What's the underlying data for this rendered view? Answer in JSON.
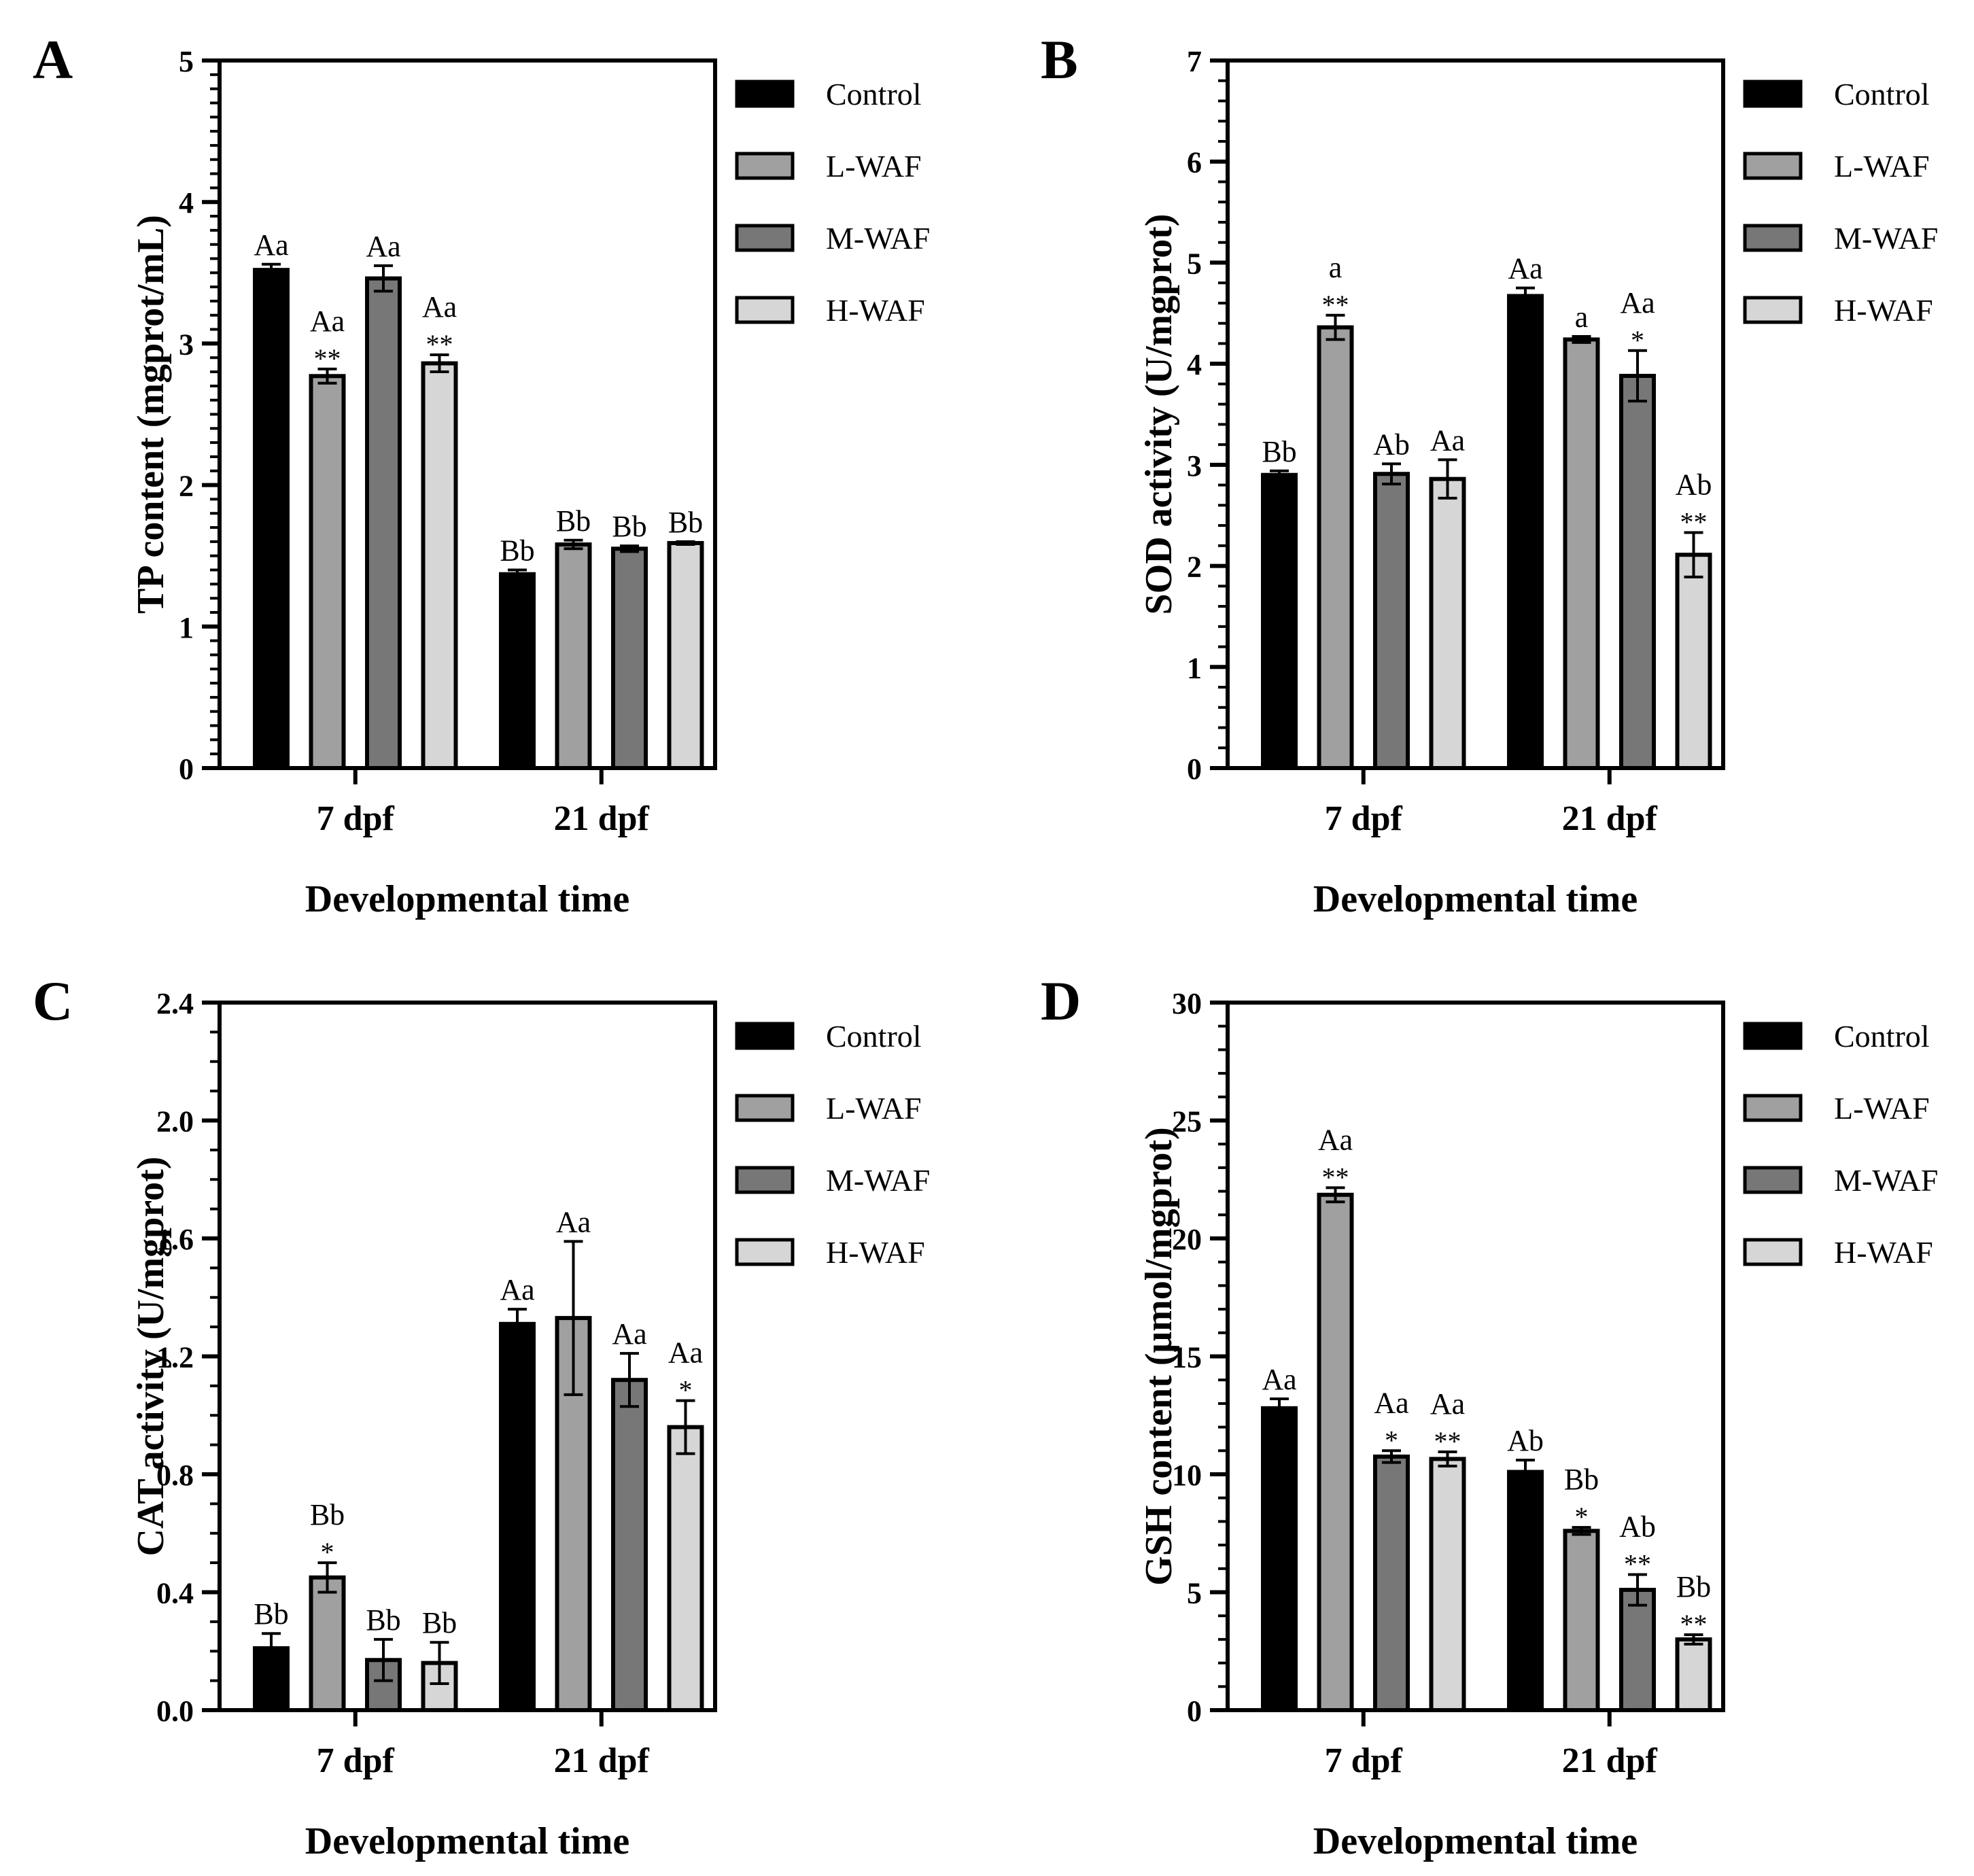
{
  "figure": {
    "series_names": [
      "Control",
      "L-WAF",
      "M-WAF",
      "H-WAF"
    ],
    "series_colors": [
      "#000000",
      "#a0a0a0",
      "#777777",
      "#d6d6d6"
    ]
  },
  "chart_data": [
    {
      "panel": "A",
      "type": "bar",
      "categories": [
        "7 dpf",
        "21 dpf"
      ],
      "xlabel": "Developmental time",
      "ylabel": "TP content (mgprot/mL)",
      "ylim": [
        0,
        5
      ],
      "yticks": [
        0,
        1,
        2,
        3,
        4,
        5
      ],
      "ytick_labels": [
        "0",
        "1",
        "2",
        "3",
        "4",
        "5"
      ],
      "minor_per_major": 10,
      "legend": "top-right",
      "series": [
        {
          "name": "Control",
          "values": [
            3.52,
            1.37
          ],
          "errors": [
            0.04,
            0.03
          ],
          "letters": [
            "Aa",
            "Bb"
          ],
          "stars": [
            "",
            ""
          ]
        },
        {
          "name": "L-WAF",
          "values": [
            2.77,
            1.58
          ],
          "errors": [
            0.05,
            0.03
          ],
          "letters": [
            "Aa",
            "Bb"
          ],
          "stars": [
            "**",
            ""
          ]
        },
        {
          "name": "M-WAF",
          "values": [
            3.46,
            1.55
          ],
          "errors": [
            0.09,
            0.02
          ],
          "letters": [
            "Aa",
            "Bb"
          ],
          "stars": [
            "",
            ""
          ]
        },
        {
          "name": "H-WAF",
          "values": [
            2.86,
            1.59
          ],
          "errors": [
            0.06,
            0.01
          ],
          "letters": [
            "Aa",
            "Bb"
          ],
          "stars": [
            "**",
            ""
          ]
        }
      ]
    },
    {
      "panel": "B",
      "type": "bar",
      "categories": [
        "7 dpf",
        "21 dpf"
      ],
      "xlabel": "Developmental time",
      "ylabel": "SOD activity (U/mgprot)",
      "ylim": [
        0,
        7
      ],
      "yticks": [
        0,
        1,
        2,
        3,
        4,
        5,
        6,
        7
      ],
      "ytick_labels": [
        "0",
        "1",
        "2",
        "3",
        "4",
        "5",
        "6",
        "7"
      ],
      "minor_per_major": 5,
      "legend": "top-right",
      "series": [
        {
          "name": "Control",
          "values": [
            2.9,
            4.67
          ],
          "errors": [
            0.04,
            0.08
          ],
          "letters": [
            "Bb",
            "Aa"
          ],
          "stars": [
            "",
            ""
          ]
        },
        {
          "name": "L-WAF",
          "values": [
            4.36,
            4.24
          ],
          "errors": [
            0.12,
            0.03
          ],
          "letters": [
            "a",
            "a"
          ],
          "stars": [
            "**",
            ""
          ]
        },
        {
          "name": "M-WAF",
          "values": [
            2.91,
            3.88
          ],
          "errors": [
            0.1,
            0.25
          ],
          "letters": [
            "Ab",
            "Aa"
          ],
          "stars": [
            "",
            "*"
          ]
        },
        {
          "name": "H-WAF",
          "values": [
            2.86,
            2.11
          ],
          "errors": [
            0.19,
            0.22
          ],
          "letters": [
            "Aa",
            "Ab"
          ],
          "stars": [
            "",
            "**"
          ]
        }
      ]
    },
    {
      "panel": "C",
      "type": "bar",
      "categories": [
        "7 dpf",
        "21 dpf"
      ],
      "xlabel": "Developmental time",
      "ylabel": "CAT activity (U/mgprot)",
      "ylim": [
        0,
        2.4
      ],
      "yticks": [
        0,
        0.4,
        0.8,
        1.2,
        1.6,
        2.0,
        2.4
      ],
      "ytick_labels": [
        "0.0",
        "0.4",
        "0.8",
        "1.2",
        "1.6",
        "2.0",
        "2.4"
      ],
      "minor_per_major": 4,
      "legend": "top-right",
      "series": [
        {
          "name": "Control",
          "values": [
            0.21,
            1.31
          ],
          "errors": [
            0.05,
            0.05
          ],
          "letters": [
            "Bb",
            "Aa"
          ],
          "stars": [
            "",
            ""
          ]
        },
        {
          "name": "L-WAF",
          "values": [
            0.45,
            1.33
          ],
          "errors": [
            0.05,
            0.26
          ],
          "letters": [
            "Bb",
            "Aa"
          ],
          "stars": [
            "*",
            ""
          ]
        },
        {
          "name": "M-WAF",
          "values": [
            0.17,
            1.12
          ],
          "errors": [
            0.07,
            0.09
          ],
          "letters": [
            "Bb",
            "Aa"
          ],
          "stars": [
            "",
            ""
          ]
        },
        {
          "name": "H-WAF",
          "values": [
            0.16,
            0.96
          ],
          "errors": [
            0.07,
            0.09
          ],
          "letters": [
            "Bb",
            "Aa"
          ],
          "stars": [
            "",
            "*"
          ]
        }
      ]
    },
    {
      "panel": "D",
      "type": "bar",
      "categories": [
        "7 dpf",
        "21 dpf"
      ],
      "xlabel": "Developmental time",
      "ylabel": "GSH content (μmol/mgprot)",
      "ylim": [
        0,
        30
      ],
      "yticks": [
        0,
        5,
        10,
        15,
        20,
        25,
        30
      ],
      "ytick_labels": [
        "0",
        "5",
        "10",
        "15",
        "20",
        "25",
        "30"
      ],
      "minor_per_major": 5,
      "legend": "top-right",
      "series": [
        {
          "name": "Control",
          "values": [
            12.8,
            10.1
          ],
          "errors": [
            0.4,
            0.5
          ],
          "letters": [
            "Aa",
            "Ab"
          ],
          "stars": [
            "",
            ""
          ]
        },
        {
          "name": "L-WAF",
          "values": [
            21.85,
            7.6
          ],
          "errors": [
            0.3,
            0.15
          ],
          "letters": [
            "Aa",
            "Bb"
          ],
          "stars": [
            "**",
            "*"
          ]
        },
        {
          "name": "M-WAF",
          "values": [
            10.75,
            5.1
          ],
          "errors": [
            0.25,
            0.65
          ],
          "letters": [
            "Aa",
            "Ab"
          ],
          "stars": [
            "*",
            "**"
          ]
        },
        {
          "name": "H-WAF",
          "values": [
            10.65,
            3.0
          ],
          "errors": [
            0.3,
            0.2
          ],
          "letters": [
            "Aa",
            "Bb"
          ],
          "stars": [
            "**",
            "**"
          ]
        }
      ]
    }
  ]
}
